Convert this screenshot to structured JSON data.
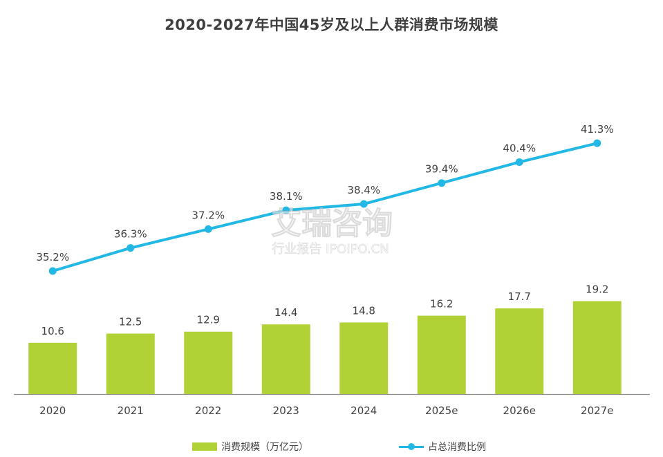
{
  "chart_data": {
    "type": "bar+line",
    "title": "2020-2027年中国45岁及以上人群消费市场规模",
    "categories": [
      "2020",
      "2021",
      "2022",
      "2023",
      "2024",
      "2025e",
      "2026e",
      "2027e"
    ],
    "series": [
      {
        "name": "消费规模（万亿元）",
        "type": "bar",
        "values": [
          10.6,
          12.5,
          12.9,
          14.4,
          14.8,
          16.2,
          17.7,
          19.2
        ],
        "labels": [
          "10.6",
          "12.5",
          "12.9",
          "14.4",
          "14.8",
          "16.2",
          "17.7",
          "19.2"
        ]
      },
      {
        "name": "占总消费比例",
        "type": "line",
        "values": [
          35.2,
          36.3,
          37.2,
          38.1,
          38.4,
          39.4,
          40.4,
          41.3
        ],
        "labels": [
          "35.2%",
          "36.3%",
          "37.2%",
          "38.1%",
          "38.4%",
          "39.4%",
          "40.4%",
          "41.3%"
        ]
      }
    ],
    "grid": false,
    "legend": "bottom",
    "colors": {
      "bar": "#b0d237",
      "line": "#22b8e6",
      "text": "#404040",
      "axis": "#8c8c8c"
    }
  },
  "watermark": {
    "main": "艾瑞咨询",
    "sub": "行业报告 IPOIPO.CN"
  }
}
